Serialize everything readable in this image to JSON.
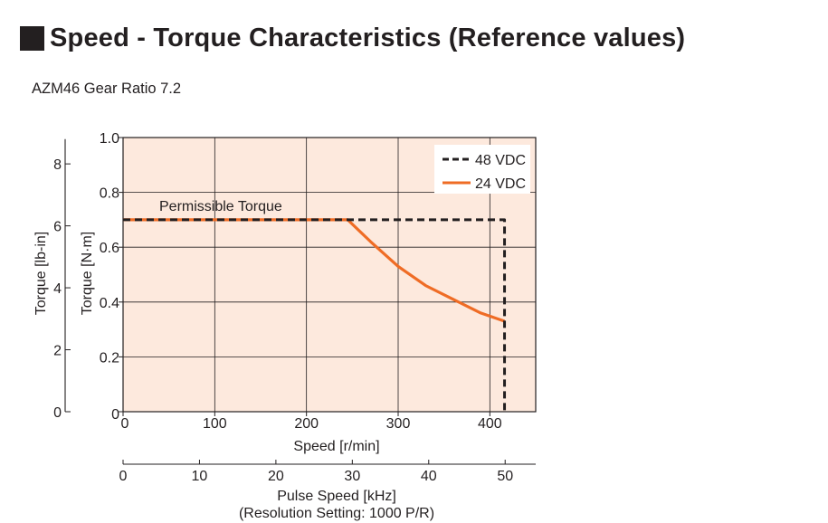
{
  "heading": {
    "icon": "black-square-icon",
    "title": "Speed - Torque Characteristics (Reference values)"
  },
  "subtitle": "AZM46  Gear Ratio 7.2",
  "chart_data": {
    "type": "line",
    "title": "Speed - Torque Characteristics (Reference values)",
    "subtitle": "AZM46  Gear Ratio 7.2",
    "xlabel": "Speed [r/min]",
    "xlim": [
      0,
      450
    ],
    "xticks": [
      0,
      100,
      200,
      300,
      400
    ],
    "ylabel": "Torque [N·m]",
    "ylim": [
      0,
      1.0
    ],
    "yticks": [
      "0",
      "0.2",
      "0.4",
      "0.6",
      "0.8",
      "1.0"
    ],
    "y2_label": "Torque [lb-in]",
    "y2_ticks": [
      0,
      2,
      4,
      6,
      8
    ],
    "x2_label": "Pulse Speed [kHz]",
    "x2_note": "(Resolution Setting: 1000 P/R)",
    "x2_ticks": [
      0,
      10,
      20,
      30,
      40,
      50
    ],
    "grid": true,
    "background": "#fde9dd",
    "legend_position": "top-right",
    "annotation": "Permissible Torque",
    "series": [
      {
        "name": "48 VDC",
        "style": "dashed",
        "color": "#231f20",
        "x": [
          0,
          416,
          416
        ],
        "y": [
          0.7,
          0.7,
          0
        ]
      },
      {
        "name": "24 VDC",
        "style": "solid",
        "color": "#ef6c25",
        "x": [
          0,
          245,
          270,
          300,
          330,
          360,
          390,
          416
        ],
        "y": [
          0.7,
          0.7,
          0.62,
          0.53,
          0.46,
          0.41,
          0.36,
          0.33
        ]
      }
    ]
  }
}
